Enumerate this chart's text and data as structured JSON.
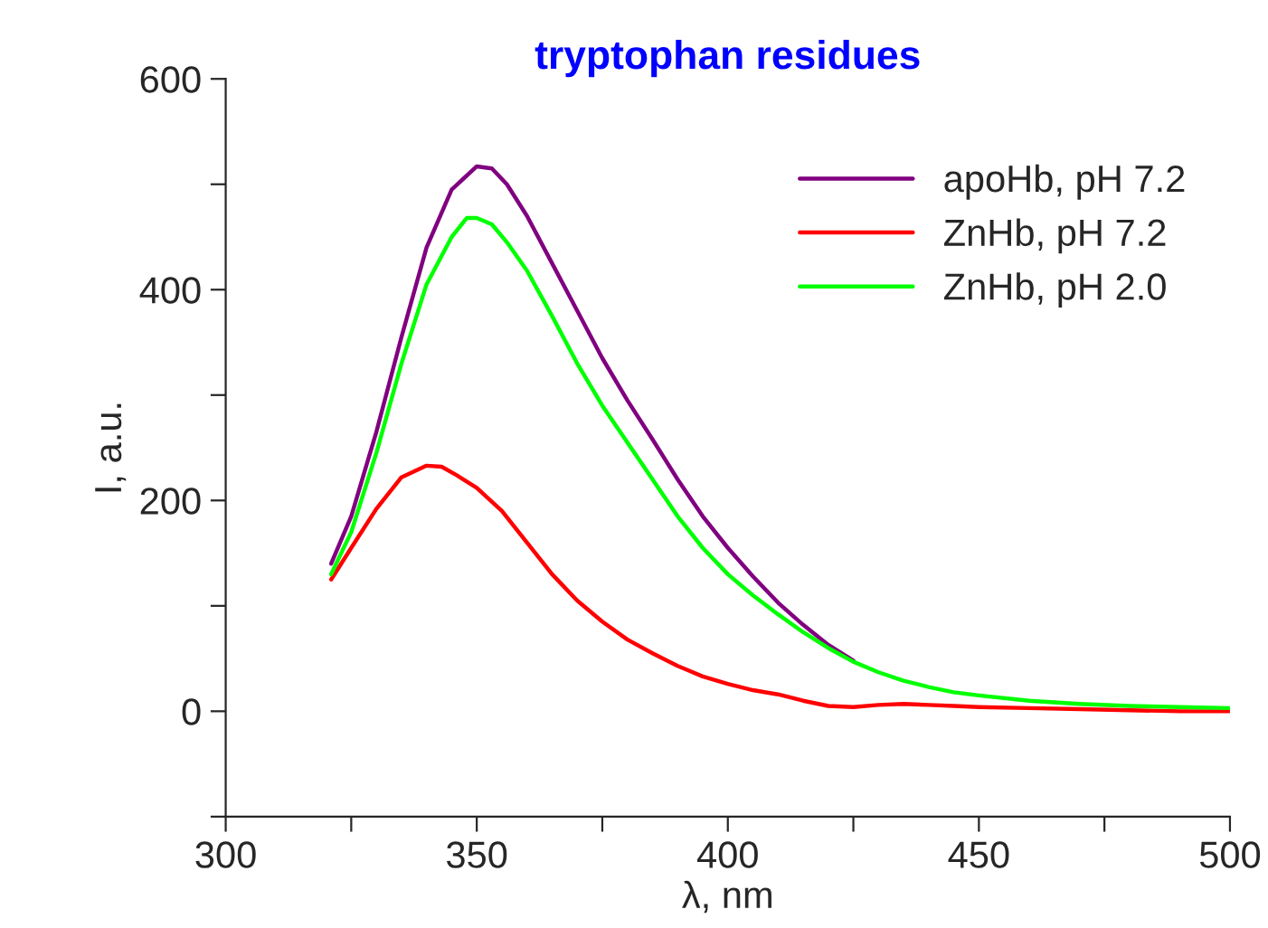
{
  "chart_data": {
    "type": "line",
    "title": "tryptophan residues",
    "xlabel": "λ, nm",
    "ylabel": "I, a.u.",
    "xlim": [
      300,
      500
    ],
    "ylim": [
      -100,
      600
    ],
    "xticks": [
      300,
      {
        "value": 325,
        "label": null
      },
      350,
      {
        "value": 375,
        "label": null
      },
      400,
      {
        "value": 425,
        "label": null
      },
      450,
      {
        "value": 475,
        "label": null
      },
      500
    ],
    "yticks": [
      {
        "value": -100,
        "label": null
      },
      0,
      {
        "value": 100,
        "label": null
      },
      200,
      {
        "value": 300,
        "label": null
      },
      400,
      {
        "value": 500,
        "label": null
      },
      600
    ],
    "grid": false,
    "legend": "top right",
    "marker": "none",
    "line_style": "solid",
    "series": [
      {
        "name": "apoHb, pH 7.2",
        "color": "#800080",
        "x": [
          321,
          325,
          330,
          335,
          340,
          345,
          350,
          353,
          356,
          360,
          365,
          370,
          375,
          380,
          385,
          390,
          395,
          400,
          405,
          410,
          415,
          420,
          425
        ],
        "values": [
          140,
          185,
          265,
          355,
          440,
          495,
          517,
          515,
          500,
          470,
          425,
          380,
          335,
          295,
          258,
          220,
          185,
          155,
          128,
          103,
          82,
          63,
          48
        ]
      },
      {
        "name": "ZnHb, pH 7.2",
        "color": "#ff0000",
        "x": [
          321,
          325,
          330,
          335,
          340,
          343,
          346,
          350,
          355,
          360,
          365,
          370,
          375,
          380,
          385,
          390,
          395,
          400,
          405,
          410,
          415,
          420,
          425,
          430,
          435,
          440,
          445,
          450,
          460,
          470,
          480,
          490,
          500
        ],
        "values": [
          125,
          155,
          192,
          222,
          233,
          232,
          224,
          212,
          190,
          160,
          130,
          105,
          85,
          68,
          55,
          43,
          33,
          26,
          20,
          16,
          10,
          5,
          4,
          6,
          7,
          6,
          5,
          4,
          3,
          2,
          1,
          0,
          0
        ]
      },
      {
        "name": "ZnHb, pH 2.0",
        "color": "#00ff00",
        "x": [
          321,
          325,
          330,
          335,
          340,
          345,
          348,
          350,
          353,
          356,
          360,
          365,
          370,
          375,
          380,
          385,
          390,
          395,
          400,
          405,
          410,
          415,
          420,
          425,
          430,
          435,
          440,
          445,
          450,
          460,
          470,
          480,
          490,
          500
        ],
        "values": [
          130,
          170,
          245,
          330,
          405,
          450,
          468,
          468,
          462,
          445,
          418,
          375,
          330,
          290,
          255,
          220,
          185,
          155,
          130,
          110,
          92,
          75,
          60,
          47,
          37,
          29,
          23,
          18,
          15,
          10,
          7,
          5,
          4,
          3
        ]
      }
    ]
  }
}
